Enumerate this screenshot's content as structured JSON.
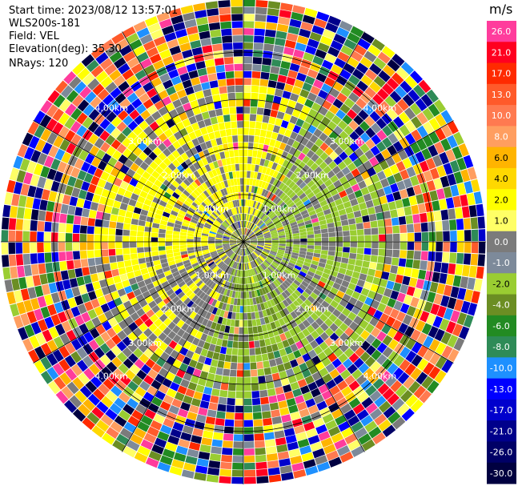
{
  "header": {
    "start_time": "Start time: 2023/08/12 13:57:01",
    "instrument": "WLS200s-181",
    "field": "Field: VEL",
    "elevation": "Elevation(deg): 35.30",
    "nrays": "NRays: 120"
  },
  "range_rings": {
    "labels": [
      "1.00km",
      "2.00km",
      "3.00km",
      "4.00km"
    ]
  },
  "colorbar": {
    "unit": "m/s",
    "levels": [
      {
        "label": "26.0",
        "color": "#ff3c9c"
      },
      {
        "label": "21.0",
        "color": "#ff0020"
      },
      {
        "label": "17.0",
        "color": "#ff2a00"
      },
      {
        "label": "13.0",
        "color": "#ff5a2a"
      },
      {
        "label": "10.0",
        "color": "#ff7a50"
      },
      {
        "label": "8.0",
        "color": "#ff9e60"
      },
      {
        "label": "6.0",
        "color": "#ffb400"
      },
      {
        "label": "4.0",
        "color": "#ffd800"
      },
      {
        "label": "2.0",
        "color": "#ffff00"
      },
      {
        "label": "1.0",
        "color": "#ffff66"
      },
      {
        "label": "0.0",
        "color": "#7b7b7b"
      },
      {
        "label": "-1.0",
        "color": "#7d8a9a"
      },
      {
        "label": "-2.0",
        "color": "#9acd32"
      },
      {
        "label": "-4.0",
        "color": "#6b8e23"
      },
      {
        "label": "-6.0",
        "color": "#228b22"
      },
      {
        "label": "-8.0",
        "color": "#2e8b57"
      },
      {
        "label": "-10.0",
        "color": "#1e90ff"
      },
      {
        "label": "-13.0",
        "color": "#0000ff"
      },
      {
        "label": "-17.0",
        "color": "#0000cd"
      },
      {
        "label": "-21.0",
        "color": "#00008b"
      },
      {
        "label": "-26.0",
        "color": "#000066"
      },
      {
        "label": "-30.0",
        "color": "#000040"
      }
    ]
  },
  "colors": {
    "near_positive": "#ffff00",
    "near_positive_dark": "#ffd800",
    "near_zero": "#7b7b7b",
    "near_negative": "#9acd32",
    "near_negative_dark": "#6b8e23"
  }
}
